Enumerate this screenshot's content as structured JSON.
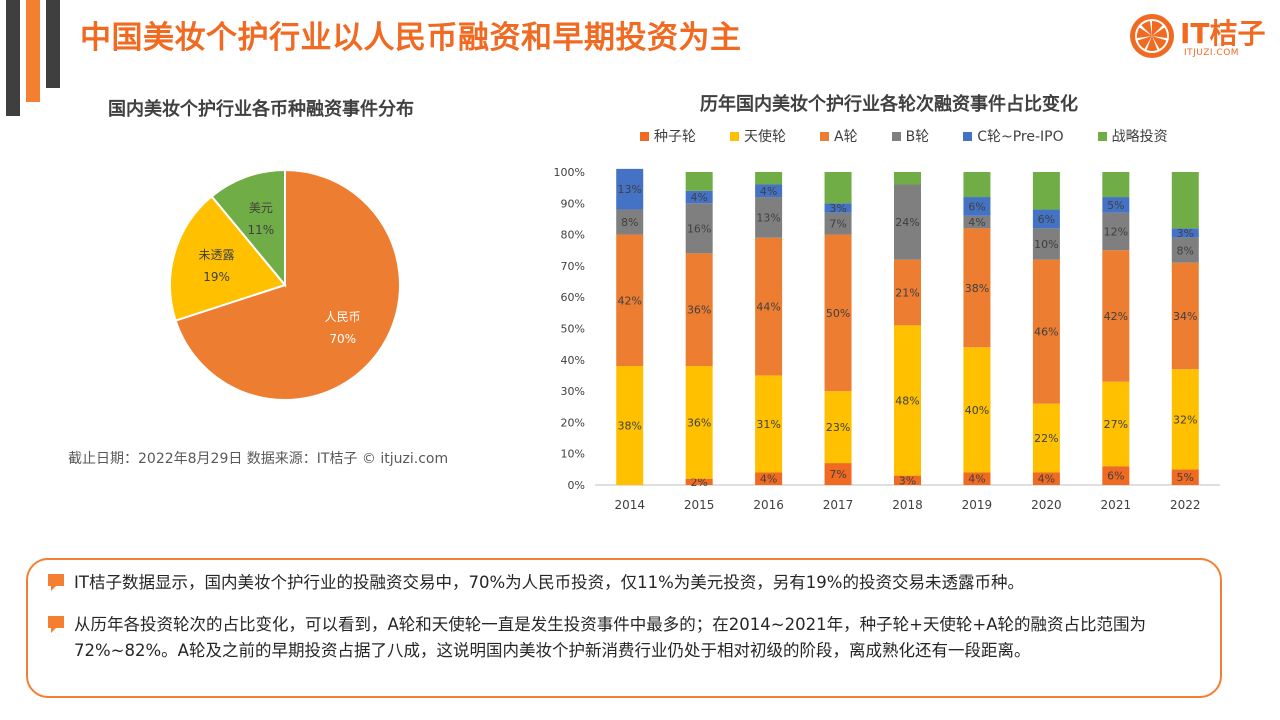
{
  "page": {
    "title": "中国美妆个护行业以人民币融资和早期投资为主"
  },
  "logo": {
    "text": "IT桔子",
    "sub": "ITJUZI.COM"
  },
  "colors": {
    "accent": "#F47F31",
    "seed": "#F06A22",
    "angel": "#FFC000",
    "a_round": "#ED7D31",
    "b_round": "#7F7F7F",
    "c_to_preipo": "#4472C4",
    "strategic": "#70AD47",
    "rmb": "#ED7D31",
    "undisclosed": "#FFC000",
    "usd": "#70AD47"
  },
  "source_note": "截止日期：2022年8月29日    数据来源：IT桔子 © itjuzi.com",
  "summary": [
    "IT桔子数据显示，国内美妆个护行业的投融资交易中，70%为人民币投资，仅11%为美元投资，另有19%的投资交易未透露币种。",
    "从历年各投资轮次的占比变化，可以看到，A轮和天使轮一直是发生投资事件中最多的；在2014~2021年，种子轮+天使轮+A轮的融资占比范围为72%~82%。A轮及之前的早期投资占据了八成，这说明国内美妆个护新消费行业仍处于相对初级的阶段，离成熟化还有一段距离。"
  ],
  "chart_data": [
    {
      "type": "pie",
      "title": "国内美妆个护行业各币种融资事件分布",
      "slices": [
        {
          "label": "人民币",
          "value": 70,
          "display": "70%",
          "color": "#ED7D31"
        },
        {
          "label": "未透露",
          "value": 19,
          "display": "19%",
          "color": "#FFC000"
        },
        {
          "label": "美元",
          "value": 11,
          "display": "11%",
          "color": "#70AD47"
        }
      ]
    },
    {
      "type": "bar",
      "stacked": true,
      "title": "历年国内美妆个护行业各轮次融资事件占比变化",
      "categories": [
        "2014",
        "2015",
        "2016",
        "2017",
        "2018",
        "2019",
        "2020",
        "2021",
        "2022"
      ],
      "y_ticks": [
        "0%",
        "10%",
        "20%",
        "30%",
        "40%",
        "50%",
        "60%",
        "70%",
        "80%",
        "90%",
        "100%"
      ],
      "ylim": [
        0,
        100
      ],
      "legend_position": "top",
      "series": [
        {
          "name": "种子轮",
          "color": "#F06A22",
          "values": [
            0,
            2,
            4,
            7,
            3,
            4,
            4,
            6,
            5
          ],
          "labels": [
            "",
            "2%",
            "4%",
            "7%",
            "3%",
            "4%",
            "4%",
            "6%",
            "5%"
          ]
        },
        {
          "name": "天使轮",
          "color": "#FFC000",
          "values": [
            38,
            36,
            31,
            23,
            48,
            40,
            22,
            27,
            32
          ],
          "labels": [
            "38%",
            "36%",
            "31%",
            "23%",
            "48%",
            "40%",
            "22%",
            "27%",
            "32%"
          ]
        },
        {
          "name": "A轮",
          "color": "#ED7D31",
          "values": [
            42,
            36,
            44,
            50,
            21,
            38,
            46,
            42,
            34
          ],
          "labels": [
            "42%",
            "36%",
            "44%",
            "50%",
            "21%",
            "38%",
            "46%",
            "42%",
            "34%"
          ]
        },
        {
          "name": "B轮",
          "color": "#7F7F7F",
          "values": [
            8,
            16,
            13,
            7,
            24,
            4,
            10,
            12,
            8
          ],
          "labels": [
            "8%",
            "16%",
            "13%",
            "7%",
            "24%",
            "4%",
            "10%",
            "12%",
            "8%"
          ]
        },
        {
          "name": "C轮~Pre-IPO",
          "color": "#4472C4",
          "values": [
            13,
            4,
            4,
            3,
            0,
            6,
            6,
            5,
            3
          ],
          "labels": [
            "13%",
            "4%",
            "4%",
            "3%",
            "",
            "6%",
            "6%",
            "5%",
            "3%"
          ]
        },
        {
          "name": "战略投资",
          "color": "#70AD47",
          "values": [
            0,
            6,
            4,
            10,
            4,
            8,
            12,
            8,
            18
          ],
          "labels": [
            "",
            "",
            "",
            "",
            "",
            "",
            "",
            "",
            ""
          ]
        }
      ]
    }
  ]
}
